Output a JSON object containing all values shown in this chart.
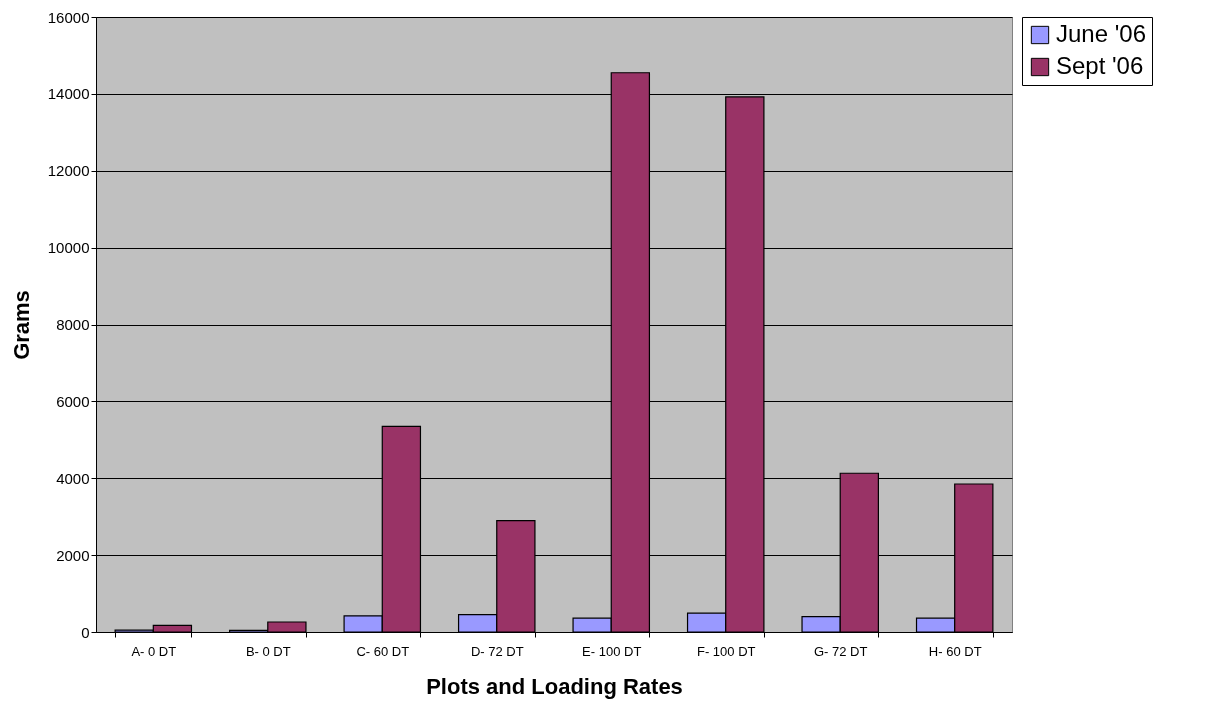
{
  "chart_data": {
    "type": "bar",
    "xlabel": "Plots and Loading Rates",
    "ylabel": "Grams",
    "categories": [
      "A- 0 DT",
      "B- 0 DT",
      "C- 60 DT",
      "D- 72 DT",
      "E- 100 DT",
      "F- 100 DT",
      "G- 72 DT",
      "H- 60 DT"
    ],
    "series": [
      {
        "name": "June '06",
        "color": "#9999ff",
        "values": [
          50,
          40,
          420,
          450,
          360,
          490,
          400,
          360
        ]
      },
      {
        "name": "Sept '06",
        "color": "#993366",
        "values": [
          170,
          260,
          5350,
          2900,
          14550,
          13920,
          4130,
          3850
        ]
      }
    ],
    "ylim": [
      0,
      16000
    ],
    "yticks": [
      0,
      2000,
      4000,
      6000,
      8000,
      10000,
      12000,
      14000,
      16000
    ],
    "grid": "y",
    "legend": "right"
  }
}
